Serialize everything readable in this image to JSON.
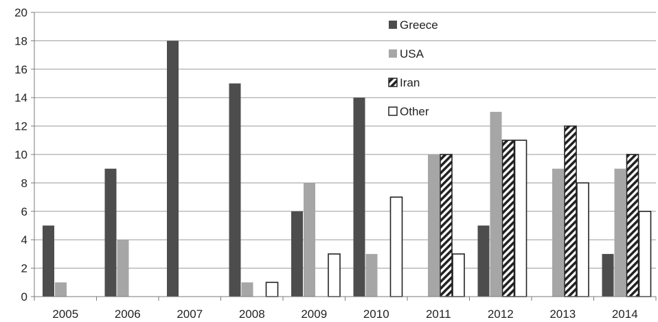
{
  "chart_data": {
    "type": "bar",
    "title": "",
    "xlabel": "",
    "ylabel": "",
    "categories": [
      "2005",
      "2006",
      "2007",
      "2008",
      "2009",
      "2010",
      "2011",
      "2012",
      "2013",
      "2014"
    ],
    "series": [
      {
        "name": "Greece",
        "values": [
          5,
          9,
          18,
          15,
          6,
          14,
          0,
          5,
          0,
          3
        ],
        "color": "#4d4d4d",
        "fill": "solid"
      },
      {
        "name": "USA",
        "values": [
          1,
          4,
          0,
          1,
          8,
          3,
          10,
          13,
          9,
          9
        ],
        "color": "#a6a6a6",
        "fill": "solid"
      },
      {
        "name": "Iran",
        "values": [
          0,
          0,
          0,
          0,
          0,
          0,
          10,
          11,
          12,
          10
        ],
        "color": "#222222",
        "fill": "diagonal-stripes"
      },
      {
        "name": "Other",
        "values": [
          0,
          0,
          0,
          1,
          3,
          7,
          3,
          11,
          8,
          6
        ],
        "color": "#ffffff",
        "fill": "outline"
      }
    ],
    "ylim": [
      0,
      20
    ],
    "yticks": [
      0,
      2,
      4,
      6,
      8,
      10,
      12,
      14,
      16,
      18,
      20
    ],
    "grid": "horizontal",
    "legend_position": "top-center-right"
  }
}
